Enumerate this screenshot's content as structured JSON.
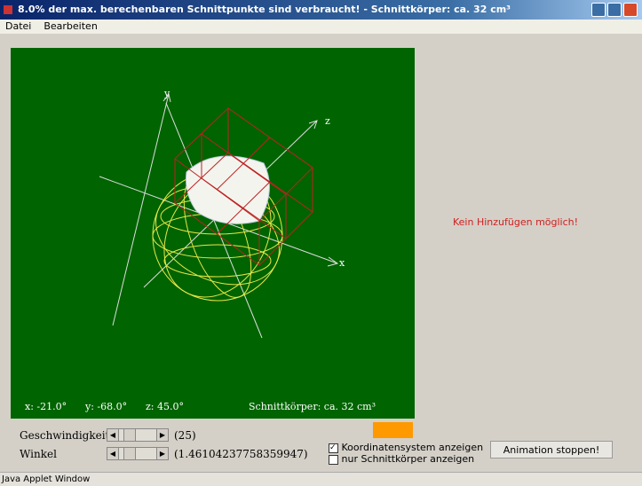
{
  "title_bar": {
    "title": "8.0% der max. berechenbaren Schnittpunkte sind verbraucht!   -   Schnittkörper: ca. 32 cm³"
  },
  "menu": {
    "items": [
      "Datei",
      "Bearbeiten"
    ]
  },
  "canvas": {
    "axis_labels": [
      "y",
      "z",
      "x"
    ],
    "angles": [
      "x: -21.0°",
      "y: -68.0°",
      "z: 45.0°"
    ],
    "volume": "Schnittkörper: ca. 32 cm³"
  },
  "right_panel": {
    "message": "Kein Hinzufügen möglich!"
  },
  "controls": {
    "speed": {
      "label": "Geschwindigkeit",
      "value": "(25)"
    },
    "angle": {
      "label": "Winkel",
      "value": "(1.46104237758359947)"
    },
    "checkboxes": [
      "Koordinatensystem anzeigen",
      "nur Schnittkörper anzeigen"
    ],
    "button": "Animation stoppen!"
  },
  "status_bar": {
    "text": "Java Applet Window"
  }
}
